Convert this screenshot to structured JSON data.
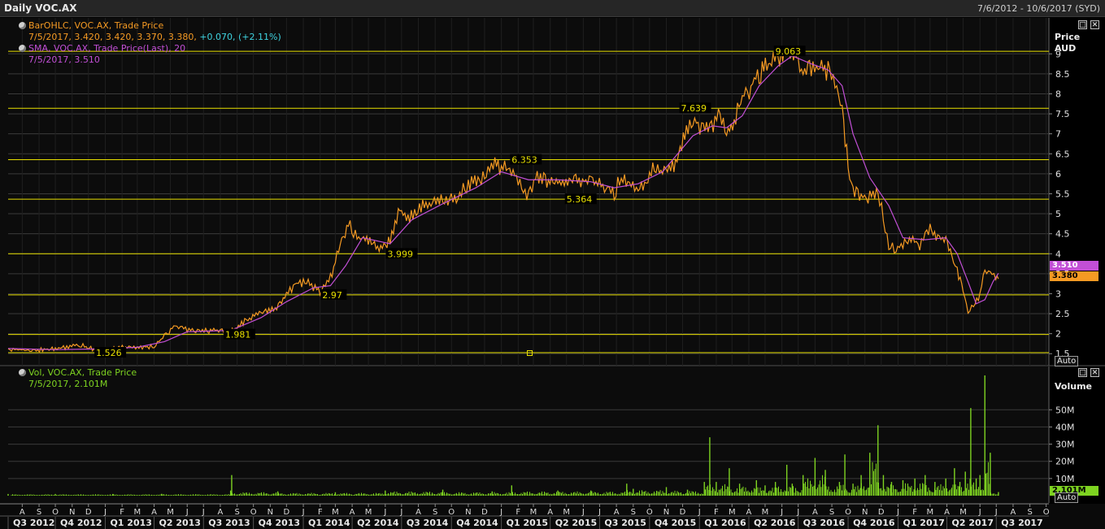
{
  "window": {
    "title": "Daily VOC.AX",
    "date_range": "7/6/2012 - 10/6/2017 (SYD)",
    "auto_label": "Auto"
  },
  "price_panel": {
    "legend_bar_line1": "BarOHLC, VOC.AX, Trade Price",
    "legend_bar_line2_values": "7/5/2017, 3.420, 3.420, 3.370, 3.380,",
    "legend_bar_line2_change": "+0.070, (+2.11%)",
    "legend_sma_line1": "SMA, VOC.AX, Trade Price(Last), 20",
    "legend_sma_line2": "7/5/2017, 3.510",
    "axis_title_1": "Price",
    "axis_title_2": "AUD",
    "sma_tag": "3.510",
    "last_price_tag": "3.380"
  },
  "volume_panel": {
    "legend_line1": "Vol, VOC.AX, Trade Price",
    "legend_line2": "7/5/2017, 2.101M",
    "axis_title": "Volume",
    "last_volume_tag": "2.101M"
  },
  "colors": {
    "price": "#f59a23",
    "sma": "#c24fd6",
    "volume": "#7ed321",
    "levels": "#e8e000",
    "grid": "#3a3a3a",
    "background": "#000000"
  },
  "chart_data": [
    {
      "type": "line",
      "x_range": [
        "2012-07-06",
        "2017-10-06"
      ],
      "ylim": [
        1.2,
        9.9
      ],
      "y_ticks": [
        "1.5",
        "2",
        "2.5",
        "3",
        "3.5",
        "4",
        "4.5",
        "5",
        "5.5",
        "6",
        "6.5",
        "7",
        "7.5",
        "8",
        "8.5",
        "9"
      ],
      "horizontal_levels": [
        {
          "value": 1.526,
          "label": "1.526"
        },
        {
          "value": 1.981,
          "label": "1.981"
        },
        {
          "value": 2.97,
          "label": "2.97"
        },
        {
          "value": 3.999,
          "label": "3.999"
        },
        {
          "value": 5.364,
          "label": "5.364"
        },
        {
          "value": 6.353,
          "label": "6.353"
        },
        {
          "value": 7.639,
          "label": "7.639"
        },
        {
          "value": 9.063,
          "label": "9.063"
        }
      ],
      "series": [
        {
          "name": "BarOHLC, VOC.AX, Trade Price",
          "x": [
            "2012-07-06",
            "2012-08-15",
            "2012-10-01",
            "2012-11-15",
            "2012-12-20",
            "2013-01-20",
            "2013-03-01",
            "2013-04-01",
            "2013-04-20",
            "2013-05-10",
            "2013-06-01",
            "2013-06-20",
            "2013-08-01",
            "2013-08-20",
            "2013-09-15",
            "2013-10-15",
            "2013-11-10",
            "2013-12-01",
            "2013-12-20",
            "2014-01-10",
            "2014-02-01",
            "2014-02-20",
            "2014-03-10",
            "2014-03-25",
            "2014-04-10",
            "2014-04-25",
            "2014-05-15",
            "2014-06-10",
            "2014-06-28",
            "2014-07-10",
            "2014-07-25",
            "2014-08-15",
            "2014-09-15",
            "2014-10-10",
            "2014-11-01",
            "2014-12-01",
            "2014-12-20",
            "2015-01-10",
            "2015-02-01",
            "2015-02-20",
            "2015-03-05",
            "2015-03-20",
            "2015-04-15",
            "2015-05-15",
            "2015-06-15",
            "2015-07-10",
            "2015-07-28",
            "2015-08-10",
            "2015-08-25",
            "2015-09-10",
            "2015-09-25",
            "2015-10-10",
            "2015-10-25",
            "2015-11-15",
            "2015-12-05",
            "2015-12-20",
            "2016-01-05",
            "2016-01-20",
            "2016-02-05",
            "2016-02-20",
            "2016-03-05",
            "2016-03-20",
            "2016-04-05",
            "2016-04-20",
            "2016-05-10",
            "2016-05-25",
            "2016-06-08",
            "2016-06-25",
            "2016-07-10",
            "2016-07-25",
            "2016-08-10",
            "2016-08-25",
            "2016-09-10",
            "2016-09-20",
            "2016-10-01",
            "2016-10-10",
            "2016-10-25",
            "2016-11-10",
            "2016-11-25",
            "2016-12-05",
            "2016-12-15",
            "2016-12-25",
            "2017-01-10",
            "2017-01-25",
            "2017-02-10",
            "2017-02-20",
            "2017-03-01",
            "2017-03-15",
            "2017-03-30",
            "2017-04-10",
            "2017-04-20",
            "2017-05-01",
            "2017-05-10",
            "2017-05-20",
            "2017-06-01",
            "2017-06-10",
            "2017-06-20",
            "2017-06-30",
            "2017-07-05"
          ],
          "values": [
            1.62,
            1.58,
            1.62,
            1.72,
            1.58,
            1.65,
            1.66,
            1.68,
            1.95,
            2.2,
            2.1,
            2.05,
            2.1,
            2.05,
            2.3,
            2.55,
            2.62,
            2.95,
            3.3,
            3.25,
            3.05,
            3.4,
            4.2,
            4.75,
            4.4,
            4.35,
            4.15,
            4.3,
            5.1,
            4.9,
            5.0,
            5.25,
            5.35,
            5.4,
            5.75,
            5.95,
            6.2,
            6.1,
            5.9,
            5.4,
            5.9,
            5.85,
            5.8,
            5.9,
            5.75,
            5.7,
            5.5,
            5.95,
            5.7,
            5.6,
            5.8,
            6.2,
            6.05,
            6.25,
            6.9,
            7.35,
            7.2,
            7.1,
            7.45,
            6.95,
            7.3,
            7.9,
            8.2,
            8.5,
            8.75,
            8.95,
            9.06,
            8.8,
            8.5,
            8.6,
            8.75,
            8.55,
            8.2,
            7.5,
            6.2,
            5.6,
            5.45,
            5.4,
            5.55,
            4.9,
            4.25,
            4.1,
            4.25,
            4.35,
            4.2,
            4.45,
            4.6,
            4.4,
            4.3,
            4.05,
            3.55,
            3.1,
            2.55,
            2.7,
            3.0,
            3.6,
            3.55,
            3.4,
            3.38
          ]
        },
        {
          "name": "SMA, VOC.AX, Trade Price(Last), 20",
          "x": [
            "2012-07-06",
            "2012-10-01",
            "2012-12-20",
            "2013-03-01",
            "2013-04-20",
            "2013-06-01",
            "2013-08-20",
            "2013-10-15",
            "2013-12-01",
            "2014-01-20",
            "2014-02-20",
            "2014-03-20",
            "2014-04-20",
            "2014-06-10",
            "2014-07-20",
            "2014-09-15",
            "2014-11-15",
            "2015-01-01",
            "2015-02-20",
            "2015-04-15",
            "2015-06-15",
            "2015-07-28",
            "2015-09-10",
            "2015-10-25",
            "2015-12-20",
            "2016-01-25",
            "2016-02-20",
            "2016-03-20",
            "2016-04-20",
            "2016-05-25",
            "2016-06-20",
            "2016-07-25",
            "2016-08-25",
            "2016-09-20",
            "2016-10-10",
            "2016-11-10",
            "2016-12-15",
            "2017-01-10",
            "2017-02-20",
            "2017-03-30",
            "2017-04-20",
            "2017-05-10",
            "2017-05-25",
            "2017-06-10",
            "2017-06-25",
            "2017-07-05"
          ],
          "values": [
            1.63,
            1.6,
            1.62,
            1.66,
            1.8,
            2.05,
            2.08,
            2.4,
            2.8,
            3.15,
            3.2,
            3.7,
            4.4,
            4.25,
            4.85,
            5.25,
            5.65,
            6.05,
            5.85,
            5.85,
            5.8,
            5.65,
            5.75,
            6.05,
            6.95,
            7.2,
            7.15,
            7.45,
            8.2,
            8.7,
            8.95,
            8.75,
            8.6,
            8.2,
            7.0,
            5.9,
            5.2,
            4.4,
            4.35,
            4.4,
            4.0,
            3.3,
            2.75,
            2.85,
            3.3,
            3.51
          ]
        }
      ]
    },
    {
      "type": "bar",
      "x_range": [
        "2012-07-06",
        "2017-10-06"
      ],
      "ylim": [
        0,
        70
      ],
      "y_ticks": [
        "10M",
        "20M",
        "30M",
        "40M",
        "50M"
      ],
      "series": [
        {
          "name": "Vol, VOC.AX, Trade Price",
          "x": [
            "2012-07-06",
            "2012-10-01",
            "2013-01-15",
            "2013-04-15",
            "2013-08-20",
            "2013-08-22",
            "2013-11-15",
            "2014-03-01",
            "2014-06-01",
            "2014-09-15",
            "2014-12-15",
            "2015-01-20",
            "2015-04-15",
            "2015-06-15",
            "2015-08-20",
            "2015-09-01",
            "2015-11-01",
            "2015-12-10",
            "2016-01-10",
            "2016-01-20",
            "2016-02-01",
            "2016-02-25",
            "2016-03-15",
            "2016-04-15",
            "2016-05-01",
            "2016-05-20",
            "2016-06-10",
            "2016-06-20",
            "2016-07-10",
            "2016-08-01",
            "2016-08-20",
            "2016-09-15",
            "2016-09-25",
            "2016-10-10",
            "2016-10-25",
            "2016-11-10",
            "2016-11-25",
            "2016-12-05",
            "2016-12-20",
            "2017-01-10",
            "2017-02-01",
            "2017-02-20",
            "2017-03-10",
            "2017-03-30",
            "2017-04-15",
            "2017-04-25",
            "2017-05-05",
            "2017-05-15",
            "2017-05-25",
            "2017-06-01",
            "2017-06-10",
            "2017-06-20",
            "2017-07-05"
          ],
          "values": [
            1.0,
            1.0,
            1.0,
            1.1,
            3.0,
            12.0,
            2.5,
            2.0,
            3.0,
            3.5,
            2.5,
            6.0,
            3.0,
            3.0,
            7.0,
            4.0,
            5.0,
            3.5,
            8.0,
            34.0,
            8.0,
            16.0,
            7.0,
            9.0,
            6.0,
            8.0,
            18.0,
            7.0,
            12.0,
            22.0,
            15.0,
            8.0,
            24.0,
            7.0,
            12.0,
            25.0,
            41.0,
            12.0,
            8.0,
            9.0,
            10.0,
            12.0,
            8.0,
            10.0,
            16.0,
            8.0,
            14.0,
            51.0,
            10.0,
            12.0,
            70.0,
            25.0,
            2.101
          ]
        }
      ]
    }
  ],
  "time_axis": {
    "month_labels": [
      "A",
      "S",
      "O",
      "N",
      "D",
      "J",
      "F",
      "M",
      "A",
      "M",
      "J",
      "J",
      "A",
      "S",
      "O",
      "N",
      "D",
      "J",
      "F",
      "M",
      "A",
      "M",
      "J",
      "J",
      "A",
      "S",
      "O",
      "N",
      "D",
      "J",
      "F",
      "M",
      "A",
      "M",
      "J",
      "J",
      "A",
      "S",
      "O",
      "N",
      "D",
      "J",
      "F",
      "M",
      "A",
      "M",
      "J",
      "J",
      "A",
      "S",
      "O",
      "N",
      "D",
      "J",
      "F",
      "M",
      "A",
      "M",
      "J",
      "J",
      "A",
      "S",
      "O"
    ],
    "quarter_labels": [
      "Q3 2012",
      "Q4 2012",
      "Q1 2013",
      "Q2 2013",
      "Q3 2013",
      "Q4 2013",
      "Q1 2014",
      "Q2 2014",
      "Q3 2014",
      "Q4 2014",
      "Q1 2015",
      "Q2 2015",
      "Q3 2015",
      "Q4 2015",
      "Q1 2016",
      "Q2 2016",
      "Q3 2016",
      "Q4 2016",
      "Q1 2017",
      "Q2 2017",
      "Q3 2017"
    ]
  }
}
